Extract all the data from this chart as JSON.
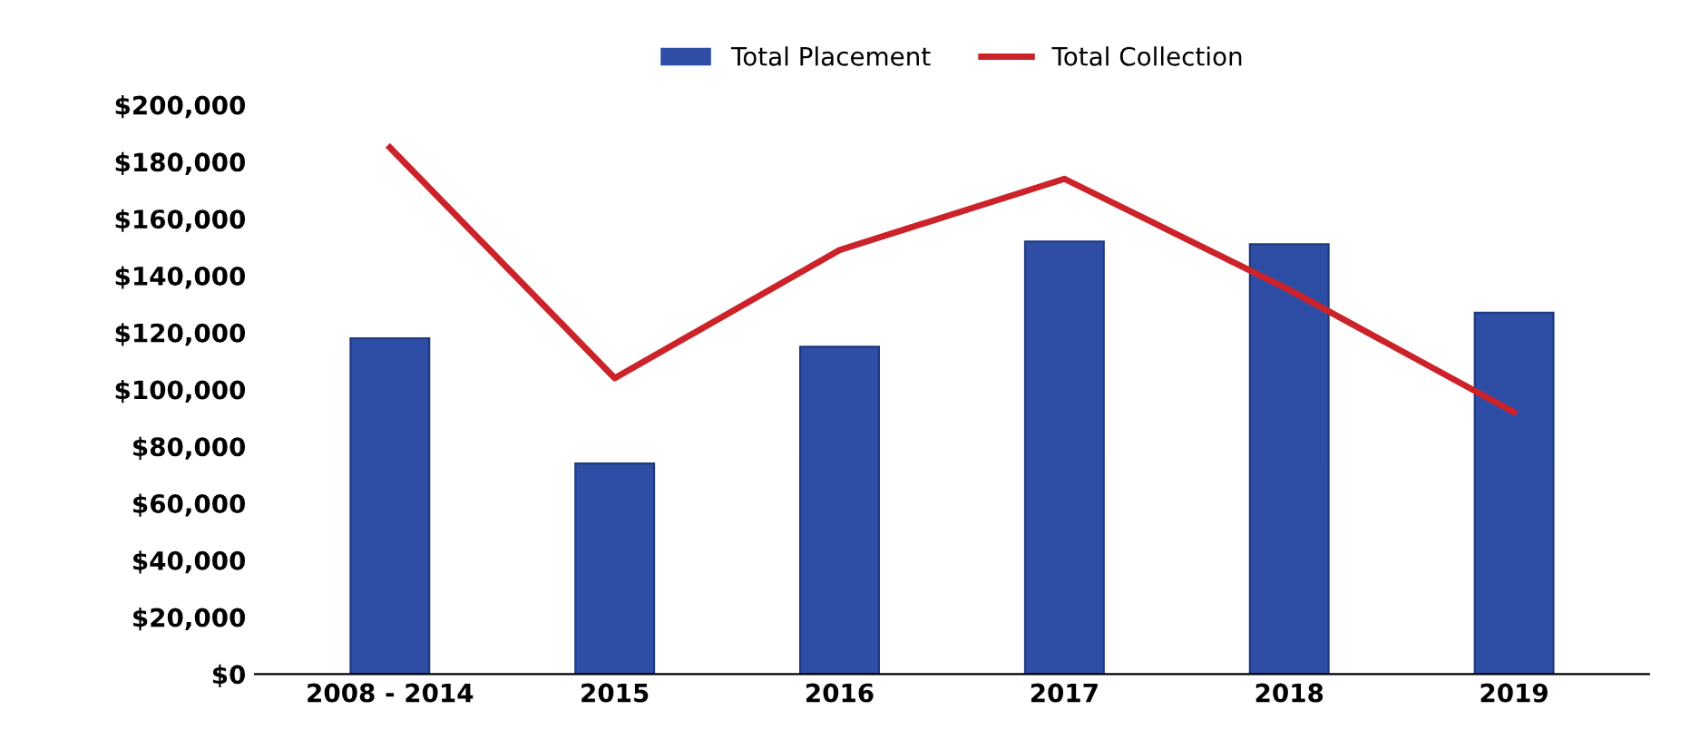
{
  "chart_data": {
    "type": "bar",
    "categories": [
      "2008 - 2014",
      "2015",
      "2016",
      "2017",
      "2018",
      "2019"
    ],
    "series": [
      {
        "name": "Total Placement",
        "color": "#2e4ea6",
        "values": [
          118000,
          74000,
          115000,
          152000,
          151000,
          127000
        ]
      },
      {
        "name": "Total Collection",
        "type": "line",
        "color": "#cc2229",
        "values": [
          185000,
          104000,
          149000,
          174000,
          135000,
          92000
        ]
      }
    ],
    "ylim": [
      0,
      200000
    ],
    "yticks": [
      {
        "value": 0,
        "label": "$0"
      },
      {
        "value": 20000,
        "label": "$20,000"
      },
      {
        "value": 40000,
        "label": "$40,000"
      },
      {
        "value": 60000,
        "label": "$60,000"
      },
      {
        "value": 80000,
        "label": "$80,000"
      },
      {
        "value": 100000,
        "label": "$100,000"
      },
      {
        "value": 120000,
        "label": "$120,000"
      },
      {
        "value": 140000,
        "label": "$140,000"
      },
      {
        "value": 160000,
        "label": "$160,000"
      },
      {
        "value": 180000,
        "label": "$180,000"
      },
      {
        "value": 200000,
        "label": "$200,000"
      }
    ],
    "legend": "top",
    "marker": "none",
    "line_style": "solid"
  }
}
